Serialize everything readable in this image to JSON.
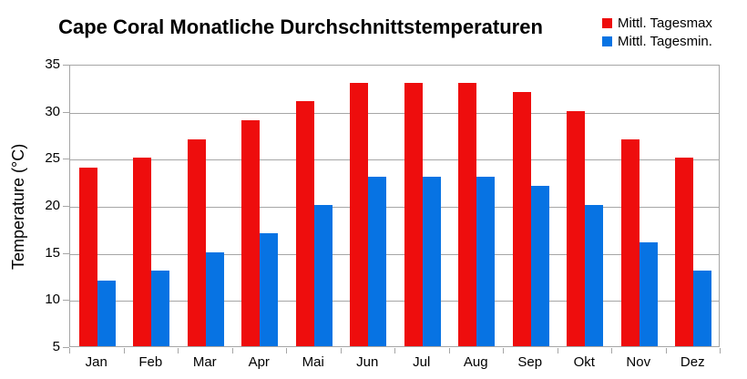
{
  "title": "Cape Coral Monatliche Durchschnittstemperaturen",
  "chart_data": {
    "type": "bar",
    "title": "Cape Coral Monatliche Durchschnittstemperaturen",
    "categories": [
      "Jan",
      "Feb",
      "Mar",
      "Apr",
      "Mai",
      "Jun",
      "Jul",
      "Aug",
      "Sep",
      "Okt",
      "Nov",
      "Dez"
    ],
    "series": [
      {
        "name": "Mittl. Tagesmax",
        "color": "#ee0d0d",
        "values": [
          24,
          25,
          27,
          29,
          31,
          33,
          33,
          33,
          32,
          30,
          27,
          25
        ]
      },
      {
        "name": "Mittl. Tagesmin.",
        "color": "#0773e3",
        "values": [
          12,
          13,
          15,
          17,
          20,
          23,
          23,
          23,
          22,
          20,
          16,
          13
        ]
      }
    ],
    "xlabel": "",
    "ylabel": "Temperature (°C)",
    "ylim": [
      5,
      35
    ],
    "yticks": [
      5,
      10,
      15,
      20,
      25,
      30,
      35
    ],
    "grid": true,
    "legend_position": "top-right",
    "colors": {
      "grid": "#a6a6a6",
      "text": "#000000",
      "background": "#ffffff"
    }
  }
}
